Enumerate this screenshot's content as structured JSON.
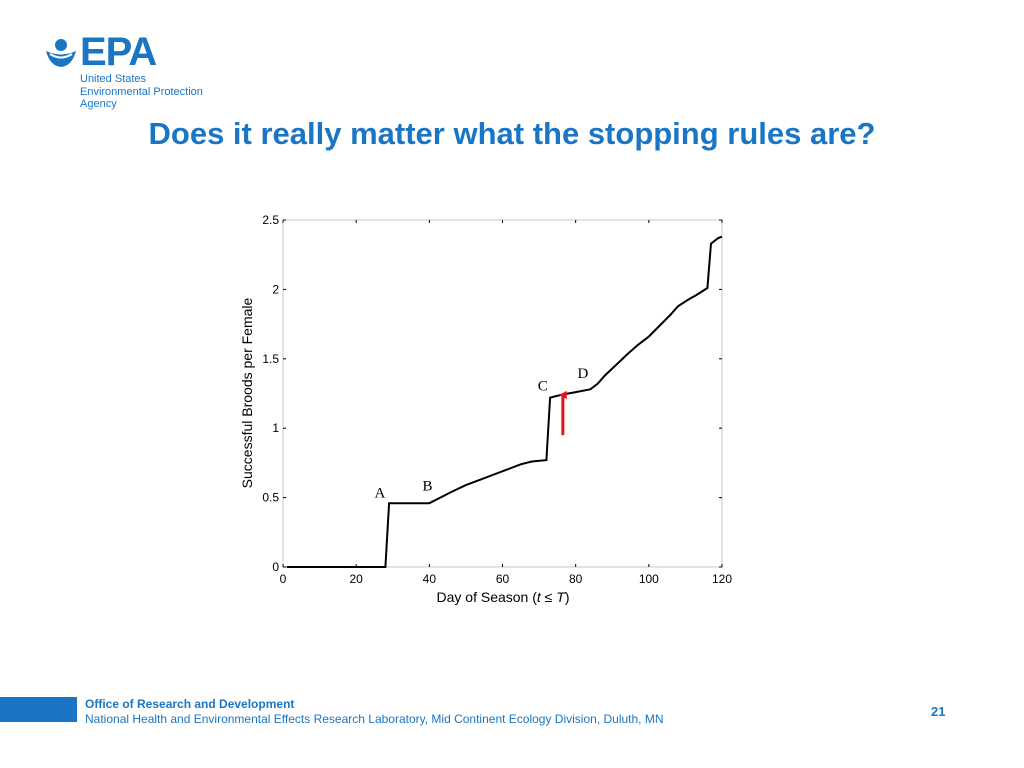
{
  "logo": {
    "wordmark": "EPA",
    "lines": [
      "United States",
      "Environmental Protection",
      "Agency"
    ],
    "color": "#1a76c5"
  },
  "slide": {
    "title": "Does it really matter what the stopping rules are?",
    "page_number": "21"
  },
  "footer": {
    "office": "Office of Research and Development",
    "lab": "National Health and Environmental Effects Research Laboratory, Mid Continent Ecology Division, Duluth, MN"
  },
  "chart_data": {
    "type": "line",
    "xlabel_prefix": "Day of Season (",
    "xlabel_var": "t",
    "xlabel_mid": " ≤ ",
    "xlabel_var2": "T",
    "xlabel_suffix": ")",
    "ylabel": "Successful Broods per Female",
    "xlim": [
      0,
      120
    ],
    "ylim": [
      0,
      2.5
    ],
    "xticks": [
      0,
      20,
      40,
      60,
      80,
      100,
      120
    ],
    "yticks": [
      0,
      0.5,
      1,
      1.5,
      2,
      2.5
    ],
    "grid": false,
    "series": [
      {
        "color": "#000000",
        "points": [
          [
            1,
            0
          ],
          [
            28,
            0
          ],
          [
            29,
            0.46
          ],
          [
            40,
            0.46
          ],
          [
            43,
            0.5
          ],
          [
            46,
            0.54
          ],
          [
            50,
            0.59
          ],
          [
            54,
            0.63
          ],
          [
            58,
            0.67
          ],
          [
            62,
            0.71
          ],
          [
            65,
            0.74
          ],
          [
            68,
            0.76
          ],
          [
            72,
            0.77
          ],
          [
            73,
            1.22
          ],
          [
            76,
            1.24
          ],
          [
            80,
            1.26
          ],
          [
            84,
            1.28
          ],
          [
            86,
            1.32
          ],
          [
            88,
            1.38
          ],
          [
            90,
            1.43
          ],
          [
            92,
            1.48
          ],
          [
            94,
            1.53
          ],
          [
            97,
            1.6
          ],
          [
            100,
            1.66
          ],
          [
            103,
            1.74
          ],
          [
            106,
            1.82
          ],
          [
            108,
            1.88
          ],
          [
            111,
            1.93
          ],
          [
            113,
            1.96
          ],
          [
            116,
            2.01
          ],
          [
            117,
            2.33
          ],
          [
            119,
            2.37
          ],
          [
            120,
            2.38
          ]
        ]
      }
    ],
    "annotations": [
      {
        "text": "A",
        "x": 26.5,
        "y": 0.5
      },
      {
        "text": "B",
        "x": 39.5,
        "y": 0.55
      },
      {
        "text": "C",
        "x": 71,
        "y": 1.27
      },
      {
        "text": "D",
        "x": 82,
        "y": 1.36
      }
    ],
    "arrow": {
      "color": "#e8141c",
      "x": 76.5,
      "y_start": 0.95,
      "y_end": 1.24
    }
  }
}
